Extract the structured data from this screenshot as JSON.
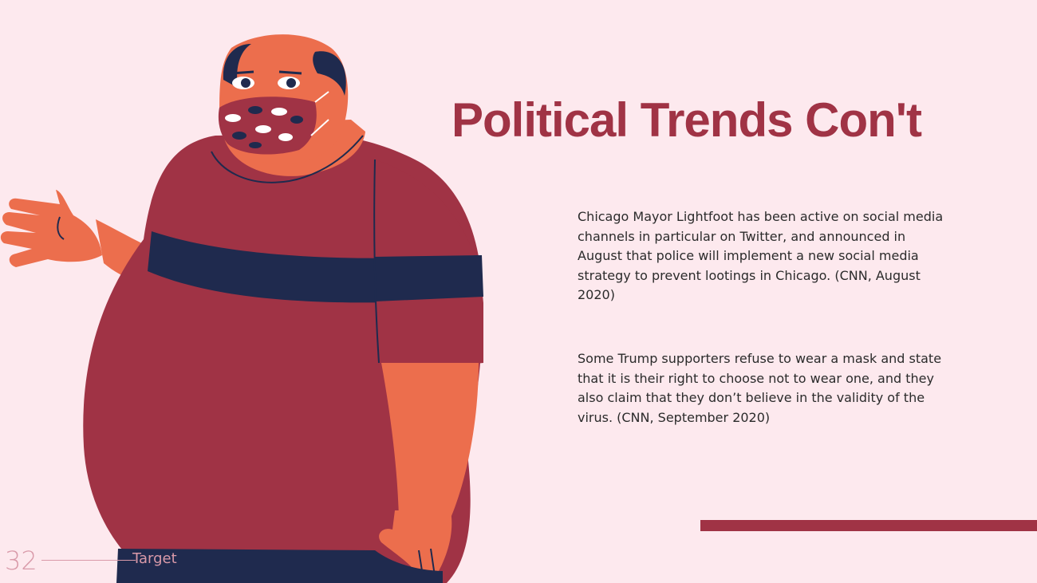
{
  "slide": {
    "title": "Political Trends Con't",
    "paragraphs": [
      "Chicago Mayor Lightfoot has been active on social media channels in particular on Twitter, and announced in August that police will implement a new social media strategy to prevent lootings in Chicago. (CNN, August 2020)",
      "Some Trump supporters refuse to wear a mask and state that it is their right to choose not to wear one, and they also claim that they don’t believe in the validity of the virus. (CNN, September 2020)"
    ],
    "footer": {
      "page_number": "32",
      "label": "Target"
    }
  },
  "colors": {
    "background": "#fde9ee",
    "accent": "#a03345",
    "skin": "#ec6e4d",
    "navy": "#1f2a4e",
    "footer_text": "#d99aa9"
  },
  "icons": {
    "illustration": "man-with-face-mask-illustration"
  }
}
